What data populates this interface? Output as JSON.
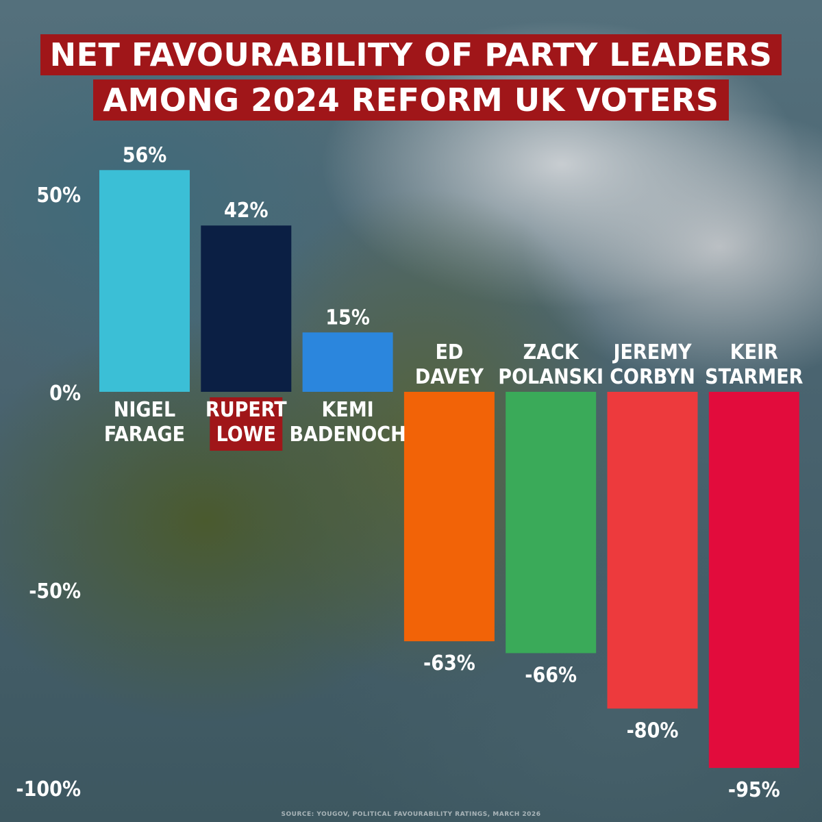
{
  "title_lines": [
    "NET FAVOURABILITY OF PARTY LEADERS",
    "AMONG 2024 REFORM UK VOTERS"
  ],
  "source": "SOURCE: YOUGOV, POLITICAL FAVOURABILITY RATINGS, MARCH 2026",
  "chart_data": {
    "type": "bar",
    "title": "NET FAVOURABILITY OF PARTY LEADERS AMONG 2024 REFORM UK VOTERS",
    "categories": [
      [
        "NIGEL",
        "FARAGE"
      ],
      [
        "RUPERT",
        "LOWE"
      ],
      [
        "KEMI",
        "BADENOCH"
      ],
      [
        "ED",
        "DAVEY"
      ],
      [
        "ZACK",
        "POLANSKI"
      ],
      [
        "JEREMY",
        "CORBYN"
      ],
      [
        "KEIR",
        "STARMER"
      ]
    ],
    "values": [
      56,
      42,
      15,
      -63,
      -66,
      -80,
      -95
    ],
    "value_labels": [
      "56%",
      "42%",
      "15%",
      "-63%",
      "-66%",
      "-80%",
      "-95%"
    ],
    "colors": [
      "#3bbfd6",
      "#0b1f44",
      "#2b86dd",
      "#f26307",
      "#3aaa59",
      "#ed3a3d",
      "#e20c3c"
    ],
    "highlighted_category": 1,
    "highlight_color": "#a01619",
    "ylim": [
      -100,
      56
    ],
    "yticks": [
      50,
      0,
      -50,
      -100
    ],
    "ytick_labels": [
      "50%",
      "0%",
      "-50%",
      "-100%"
    ],
    "grid": false,
    "legend": "none"
  }
}
